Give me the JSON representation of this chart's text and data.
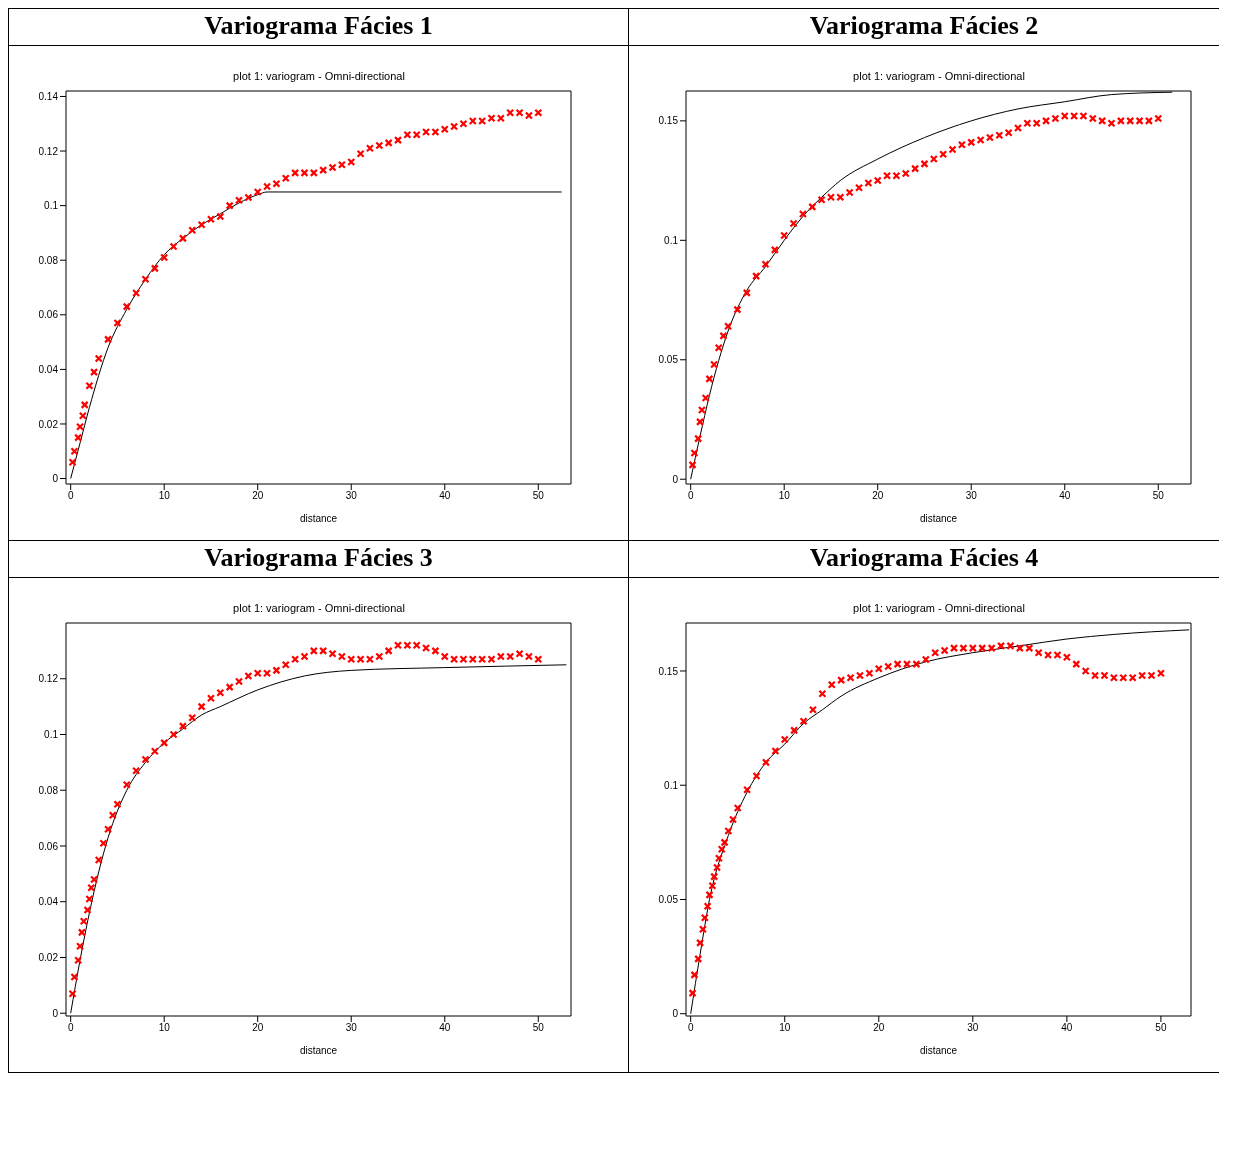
{
  "chart_data": [
    {
      "type": "scatter",
      "title": "Variograma Fácies 1",
      "subtitle": "plot 1: variogram - Omni-directional",
      "xlabel": "distance",
      "xlim": [
        -0.5,
        53.5
      ],
      "xticks": [
        0,
        10,
        20,
        30,
        40,
        50
      ],
      "ylim": [
        -0.002,
        0.142
      ],
      "yticks": [
        0,
        0.02,
        0.04,
        0.06,
        0.08,
        0.1,
        0.12,
        0.14
      ],
      "marker": "cross",
      "series": [
        {
          "color": "#ff0000",
          "x": [
            0.2,
            0.4,
            0.8,
            1,
            1.3,
            1.5,
            2,
            2.5,
            3,
            4,
            5,
            6,
            7,
            8,
            9,
            10,
            11,
            12,
            13,
            14,
            15,
            16,
            17,
            18,
            19,
            20,
            21,
            22,
            23,
            24,
            25,
            26,
            27,
            28,
            29,
            30,
            31,
            32,
            33,
            34,
            35,
            36,
            37,
            38,
            39,
            40,
            41,
            42,
            43,
            44,
            45,
            46,
            47,
            48,
            49,
            50
          ],
          "values": [
            0.006,
            0.01,
            0.015,
            0.019,
            0.023,
            0.027,
            0.034,
            0.039,
            0.044,
            0.051,
            0.057,
            0.063,
            0.068,
            0.073,
            0.077,
            0.081,
            0.085,
            0.088,
            0.091,
            0.093,
            0.095,
            0.096,
            0.1,
            0.102,
            0.103,
            0.105,
            0.107,
            0.108,
            0.11,
            0.112,
            0.112,
            0.112,
            0.113,
            0.114,
            0.115,
            0.116,
            0.119,
            0.121,
            0.122,
            0.123,
            0.124,
            0.126,
            0.126,
            0.127,
            0.127,
            0.128,
            0.129,
            0.13,
            0.131,
            0.131,
            0.132,
            0.132,
            0.134,
            0.134,
            0.133,
            0.134
          ]
        },
        {
          "type": "line",
          "color": "#000000",
          "marker": "none",
          "x": [
            0,
            1,
            2,
            4,
            6,
            8,
            10,
            12,
            14,
            16,
            18,
            20,
            21,
            52.5
          ],
          "values": [
            0,
            0.013,
            0.026,
            0.048,
            0.062,
            0.073,
            0.082,
            0.088,
            0.093,
            0.097,
            0.101,
            0.104,
            0.105,
            0.105
          ]
        }
      ]
    },
    {
      "type": "scatter",
      "title": "Variograma Fácies 2",
      "subtitle": "plot 1: variogram - Omni-directional",
      "xlabel": "distance",
      "xlim": [
        -0.5,
        53.5
      ],
      "xticks": [
        0,
        10,
        20,
        30,
        40,
        50
      ],
      "ylim": [
        -0.002,
        0.1625
      ],
      "yticks": [
        0,
        0.05,
        0.1,
        0.15
      ],
      "marker": "cross",
      "series": [
        {
          "color": "#ff0000",
          "x": [
            0.2,
            0.4,
            0.8,
            1,
            1.2,
            1.6,
            2,
            2.5,
            3,
            3.5,
            4,
            5,
            6,
            7,
            8,
            9,
            10,
            11,
            12,
            13,
            14,
            15,
            16,
            17,
            18,
            19,
            20,
            21,
            22,
            23,
            24,
            25,
            26,
            27,
            28,
            29,
            30,
            31,
            32,
            33,
            34,
            35,
            36,
            37,
            38,
            39,
            40,
            41,
            42,
            43,
            44,
            45,
            46,
            47,
            48,
            49,
            50
          ],
          "values": [
            0.006,
            0.011,
            0.017,
            0.024,
            0.029,
            0.034,
            0.042,
            0.048,
            0.055,
            0.06,
            0.064,
            0.071,
            0.078,
            0.085,
            0.09,
            0.096,
            0.102,
            0.107,
            0.111,
            0.114,
            0.117,
            0.118,
            0.118,
            0.12,
            0.122,
            0.124,
            0.125,
            0.127,
            0.127,
            0.128,
            0.13,
            0.132,
            0.134,
            0.136,
            0.138,
            0.14,
            0.141,
            0.142,
            0.143,
            0.144,
            0.145,
            0.147,
            0.149,
            0.149,
            0.15,
            0.151,
            0.152,
            0.152,
            0.152,
            0.151,
            0.15,
            0.149,
            0.15,
            0.15,
            0.15,
            0.15,
            0.151
          ]
        },
        {
          "type": "line",
          "color": "#000000",
          "marker": "none",
          "x": [
            0,
            1,
            2,
            4,
            6,
            8,
            10,
            12,
            14,
            16,
            20,
            25,
            30,
            35,
            40,
            45,
            51.5
          ],
          "values": [
            0,
            0.018,
            0.035,
            0.062,
            0.079,
            0.089,
            0.1,
            0.11,
            0.118,
            0.125,
            0.134,
            0.143,
            0.15,
            0.155,
            0.158,
            0.161,
            0.162
          ]
        }
      ]
    },
    {
      "type": "scatter",
      "title": "Variograma Fácies 3",
      "subtitle": "plot 1: variogram - Omni-directional",
      "xlabel": "distance",
      "xlim": [
        -0.5,
        53.5
      ],
      "xticks": [
        0,
        10,
        20,
        30,
        40,
        50
      ],
      "ylim": [
        -0.001,
        0.14
      ],
      "yticks": [
        0,
        0.02,
        0.04,
        0.06,
        0.08,
        0.1,
        0.12
      ],
      "marker": "cross",
      "series": [
        {
          "color": "#ff0000",
          "x": [
            0.2,
            0.4,
            0.8,
            1,
            1.2,
            1.4,
            1.8,
            2,
            2.2,
            2.5,
            3,
            3.5,
            4,
            4.5,
            5,
            6,
            7,
            8,
            9,
            10,
            11,
            12,
            13,
            14,
            15,
            16,
            17,
            18,
            19,
            20,
            21,
            22,
            23,
            24,
            25,
            26,
            27,
            28,
            29,
            30,
            31,
            32,
            33,
            34,
            35,
            36,
            37,
            38,
            39,
            40,
            41,
            42,
            43,
            44,
            45,
            46,
            47,
            48,
            49,
            50
          ],
          "values": [
            0.007,
            0.013,
            0.019,
            0.024,
            0.029,
            0.033,
            0.037,
            0.041,
            0.045,
            0.048,
            0.055,
            0.061,
            0.066,
            0.071,
            0.075,
            0.082,
            0.087,
            0.091,
            0.094,
            0.097,
            0.1,
            0.103,
            0.106,
            0.11,
            0.113,
            0.115,
            0.117,
            0.119,
            0.121,
            0.122,
            0.122,
            0.123,
            0.125,
            0.127,
            0.128,
            0.13,
            0.13,
            0.129,
            0.128,
            0.127,
            0.127,
            0.127,
            0.128,
            0.13,
            0.132,
            0.132,
            0.132,
            0.131,
            0.13,
            0.128,
            0.127,
            0.127,
            0.127,
            0.127,
            0.127,
            0.128,
            0.128,
            0.129,
            0.128,
            0.127
          ]
        },
        {
          "type": "line",
          "color": "#000000",
          "marker": "none",
          "x": [
            0,
            1,
            2,
            4,
            6,
            8,
            10,
            12,
            14,
            16,
            20,
            25,
            30,
            40,
            53
          ],
          "values": [
            0,
            0.019,
            0.036,
            0.063,
            0.08,
            0.09,
            0.097,
            0.102,
            0.107,
            0.11,
            0.116,
            0.121,
            0.123,
            0.124,
            0.125
          ]
        }
      ]
    },
    {
      "type": "scatter",
      "title": "Variograma Fácies 4",
      "subtitle": "plot 1: variogram - Omni-directional",
      "xlabel": "distance",
      "xlim": [
        -0.5,
        53.2
      ],
      "xticks": [
        0,
        10,
        20,
        30,
        40,
        50
      ],
      "ylim": [
        -0.001,
        0.171
      ],
      "yticks": [
        0,
        0.05,
        0.1,
        0.15
      ],
      "marker": "cross",
      "series": [
        {
          "color": "#ff0000",
          "x": [
            0.2,
            0.4,
            0.8,
            1,
            1.3,
            1.5,
            1.8,
            2,
            2.3,
            2.5,
            2.8,
            3,
            3.3,
            3.6,
            4,
            4.5,
            5,
            6,
            7,
            8,
            9,
            10,
            11,
            12,
            13,
            14,
            15,
            16,
            17,
            18,
            19,
            20,
            21,
            22,
            23,
            24,
            25,
            26,
            27,
            28,
            29,
            30,
            31,
            32,
            33,
            34,
            35,
            36,
            37,
            38,
            39,
            40,
            41,
            42,
            43,
            44,
            45,
            46,
            47,
            48,
            49,
            50
          ],
          "values": [
            0.009,
            0.017,
            0.024,
            0.031,
            0.037,
            0.042,
            0.047,
            0.052,
            0.056,
            0.06,
            0.064,
            0.068,
            0.072,
            0.075,
            0.08,
            0.085,
            0.09,
            0.098,
            0.104,
            0.11,
            0.115,
            0.12,
            0.124,
            0.128,
            0.133,
            0.14,
            0.144,
            0.146,
            0.147,
            0.148,
            0.149,
            0.151,
            0.152,
            0.153,
            0.153,
            0.153,
            0.155,
            0.158,
            0.159,
            0.16,
            0.16,
            0.16,
            0.16,
            0.16,
            0.161,
            0.161,
            0.16,
            0.16,
            0.158,
            0.157,
            0.157,
            0.156,
            0.153,
            0.15,
            0.148,
            0.148,
            0.147,
            0.147,
            0.147,
            0.148,
            0.148,
            0.149
          ]
        },
        {
          "type": "line",
          "color": "#000000",
          "marker": "none",
          "x": [
            0,
            1,
            2,
            4,
            6,
            8,
            10,
            12,
            14,
            16,
            20,
            25,
            30,
            35,
            40,
            45,
            53
          ],
          "values": [
            0,
            0.026,
            0.05,
            0.078,
            0.097,
            0.11,
            0.118,
            0.127,
            0.133,
            0.139,
            0.147,
            0.154,
            0.158,
            0.161,
            0.164,
            0.166,
            0.168
          ]
        }
      ]
    }
  ]
}
